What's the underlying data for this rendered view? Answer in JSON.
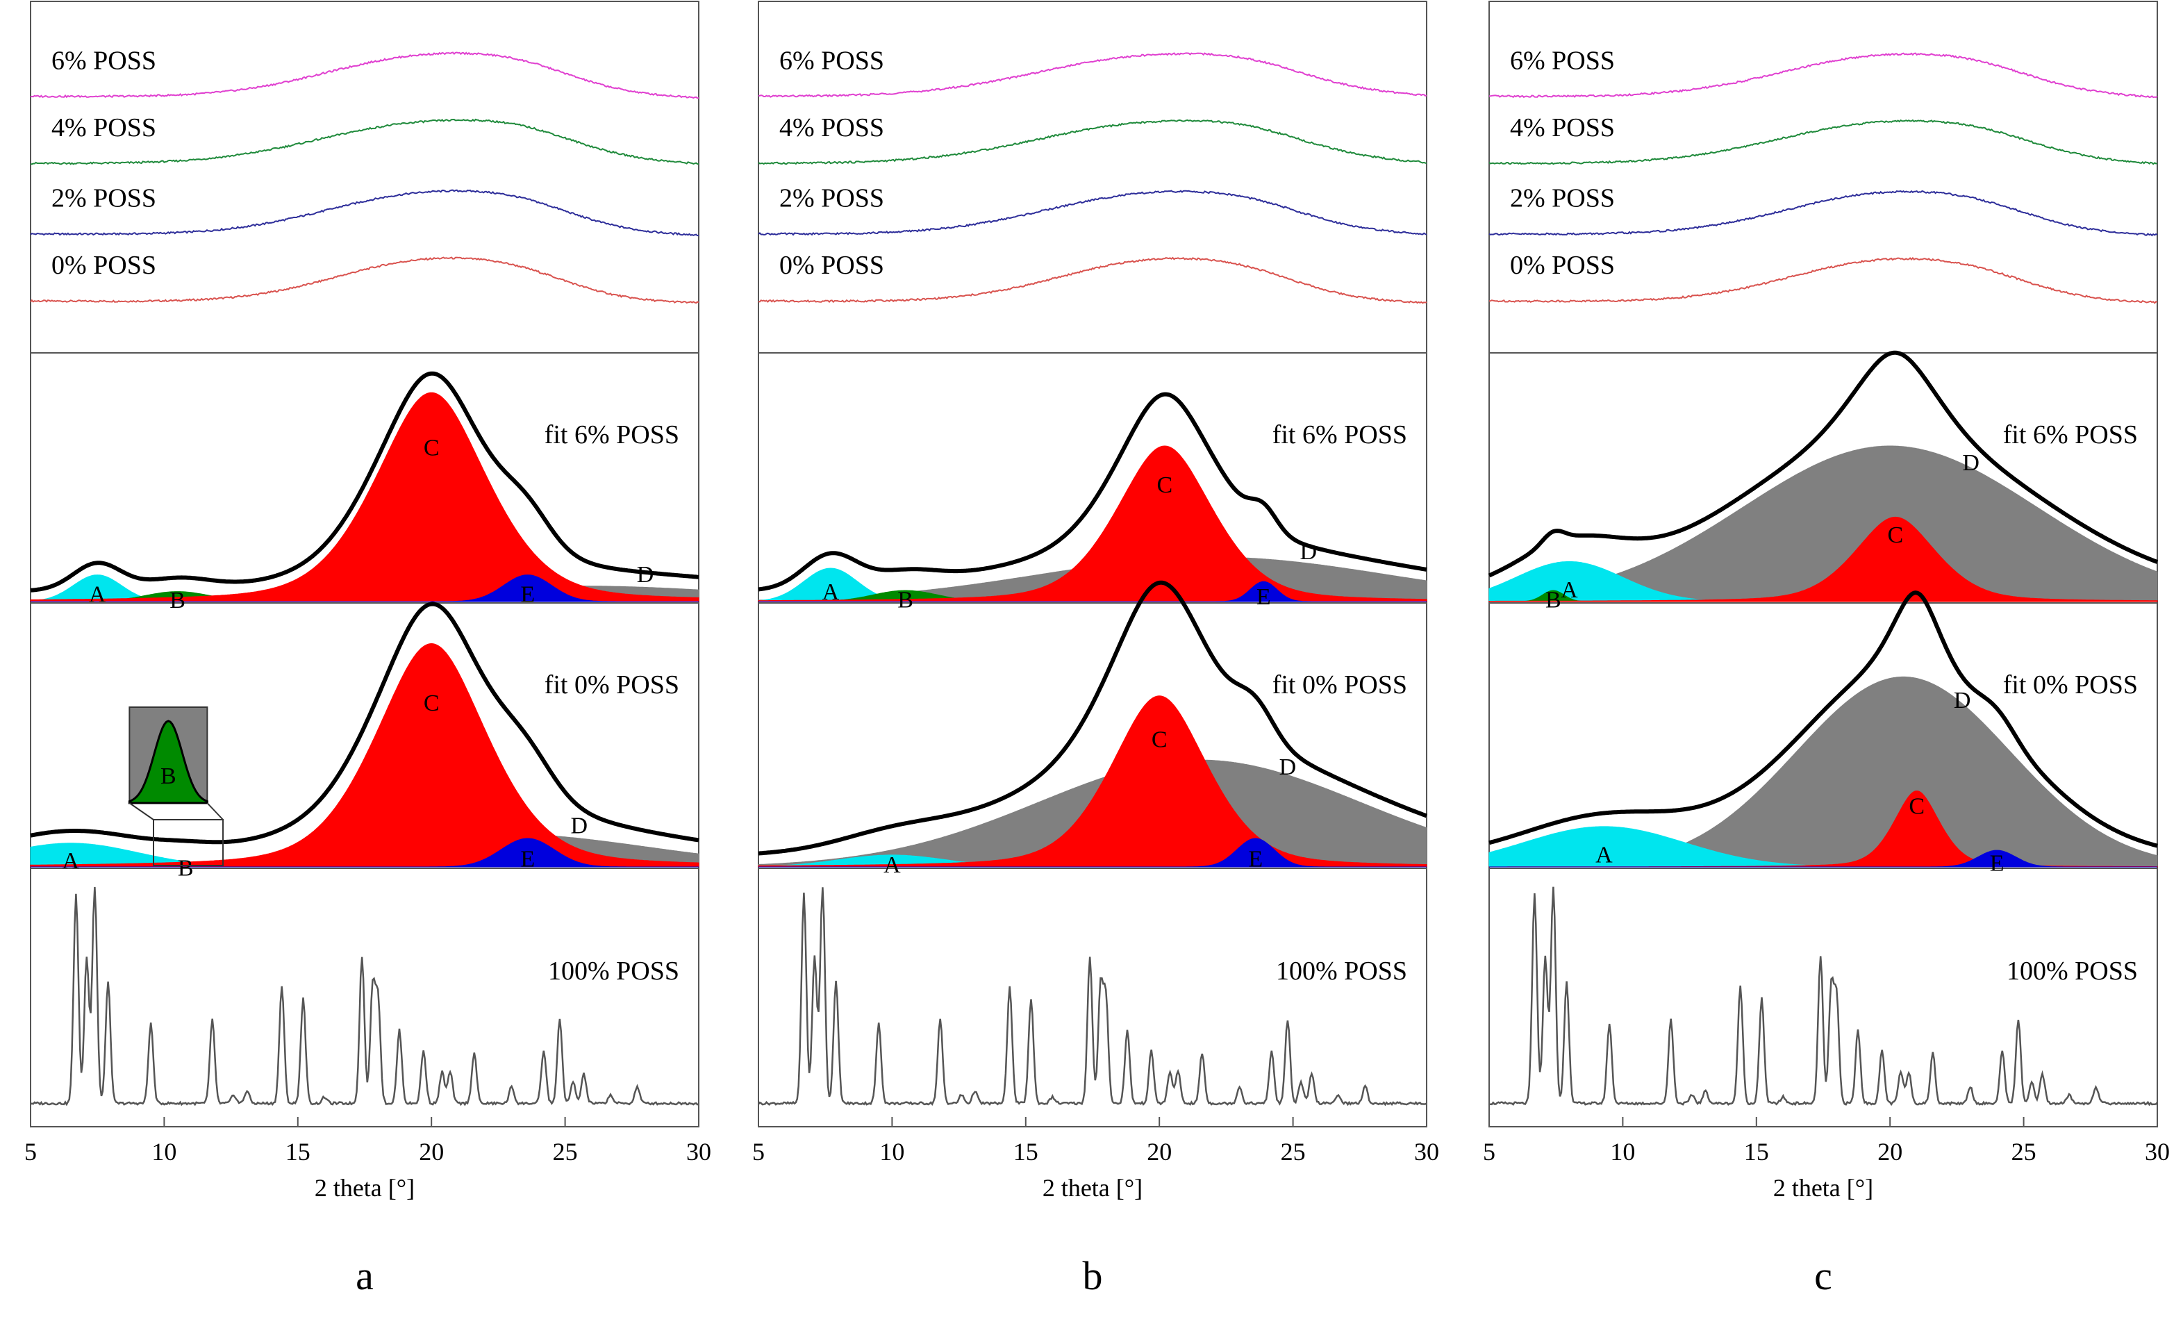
{
  "figure": {
    "x_axis_label": "2 theta [°]",
    "x_ticks": [
      5,
      10,
      15,
      20,
      25,
      30
    ],
    "colors": {
      "pct0": "#d9534f",
      "pct2": "#2e2e9a",
      "pct4": "#1f8a3b",
      "pct6": "#e040d0",
      "A": "#00e5ee",
      "B": "#008a00",
      "C": "#ff0000",
      "D": "#808080",
      "E": "#0000dd",
      "envelope": "#000000",
      "poss100": "#555555"
    }
  },
  "chart_data": [
    {
      "type": "line",
      "panel": "a",
      "panel_label": "a",
      "xlabel": "2 theta [°]",
      "xlim": [
        5,
        30
      ],
      "xrd_series": [
        {
          "name": "0% POSS",
          "peaks": [
            {
              "center": 20.0,
              "width": 2.2,
              "height": 1.0
            },
            {
              "center": 23.5,
              "width": 1.2,
              "height": 0.25
            }
          ],
          "baseline": 0.05
        },
        {
          "name": "2% POSS",
          "peaks": [
            {
              "center": 20.0,
              "width": 2.4,
              "height": 1.0
            },
            {
              "center": 23.5,
              "width": 1.2,
              "height": 0.25
            }
          ],
          "baseline": 0.05
        },
        {
          "name": "4% POSS",
          "peaks": [
            {
              "center": 20.0,
              "width": 2.6,
              "height": 1.0
            },
            {
              "center": 23.5,
              "width": 1.2,
              "height": 0.25
            }
          ],
          "baseline": 0.05
        },
        {
          "name": "6% POSS",
          "peaks": [
            {
              "center": 20.0,
              "width": 2.4,
              "height": 1.0
            },
            {
              "center": 23.5,
              "width": 1.2,
              "height": 0.25
            }
          ],
          "baseline": 0.05
        }
      ],
      "fits": [
        {
          "name": "fit 6% POSS",
          "components": [
            {
              "label": "A",
              "center": 7.5,
              "width": 0.9,
              "height": 0.12
            },
            {
              "label": "B",
              "center": 10.5,
              "width": 1.2,
              "height": 0.045
            },
            {
              "label": "C",
              "center": 20.0,
              "width": 2.2,
              "height": 0.94
            },
            {
              "label": "D",
              "center": 25.5,
              "width": 6.0,
              "height": 0.07
            },
            {
              "label": "E",
              "center": 23.6,
              "width": 0.9,
              "height": 0.12
            }
          ]
        },
        {
          "name": "fit 0% POSS",
          "components": [
            {
              "label": "A",
              "center": 6.5,
              "width": 2.5,
              "height": 0.1
            },
            {
              "label": "B",
              "center": 10.8,
              "width": 1.0,
              "height": 0.012
            },
            {
              "label": "C",
              "center": 20.0,
              "width": 2.2,
              "height": 0.94
            },
            {
              "label": "D",
              "center": 22.5,
              "width": 5.5,
              "height": 0.14
            },
            {
              "label": "E",
              "center": 23.6,
              "width": 1.0,
              "height": 0.12
            }
          ]
        }
      ],
      "poss100": {
        "name": "100% POSS",
        "peaks": [
          {
            "center": 6.7,
            "height": 1.0
          },
          {
            "center": 7.1,
            "height": 0.7
          },
          {
            "center": 7.4,
            "height": 1.03
          },
          {
            "center": 7.9,
            "height": 0.58
          },
          {
            "center": 9.5,
            "height": 0.38
          },
          {
            "center": 11.8,
            "height": 0.4
          },
          {
            "center": 12.6,
            "height": 0.04
          },
          {
            "center": 13.1,
            "height": 0.06
          },
          {
            "center": 14.4,
            "height": 0.56
          },
          {
            "center": 15.2,
            "height": 0.5
          },
          {
            "center": 16.0,
            "height": 0.03
          },
          {
            "center": 17.4,
            "height": 0.7
          },
          {
            "center": 17.8,
            "height": 0.55
          },
          {
            "center": 18.0,
            "height": 0.5
          },
          {
            "center": 18.8,
            "height": 0.35
          },
          {
            "center": 19.7,
            "height": 0.25
          },
          {
            "center": 20.4,
            "height": 0.15
          },
          {
            "center": 20.7,
            "height": 0.15
          },
          {
            "center": 21.6,
            "height": 0.24
          },
          {
            "center": 23.0,
            "height": 0.08
          },
          {
            "center": 24.2,
            "height": 0.25
          },
          {
            "center": 24.8,
            "height": 0.4
          },
          {
            "center": 25.3,
            "height": 0.1
          },
          {
            "center": 25.7,
            "height": 0.14
          },
          {
            "center": 26.7,
            "height": 0.04
          },
          {
            "center": 27.7,
            "height": 0.08
          }
        ]
      }
    },
    {
      "type": "line",
      "panel": "b",
      "panel_label": "b",
      "xlabel": "2 theta [°]",
      "xlim": [
        5,
        30
      ],
      "xrd_series": [
        {
          "name": "0% POSS",
          "peaks": [
            {
              "center": 20.0,
              "width": 2.3,
              "height": 1.0
            },
            {
              "center": 23.5,
              "width": 1.2,
              "height": 0.22
            }
          ],
          "baseline": 0.05
        },
        {
          "name": "2% POSS",
          "peaks": [
            {
              "center": 20.0,
              "width": 2.6,
              "height": 1.0
            },
            {
              "center": 23.5,
              "width": 1.2,
              "height": 0.2
            }
          ],
          "baseline": 0.05
        },
        {
          "name": "4% POSS",
          "peaks": [
            {
              "center": 20.0,
              "width": 2.8,
              "height": 1.0
            },
            {
              "center": 23.5,
              "width": 1.2,
              "height": 0.2
            }
          ],
          "baseline": 0.05
        },
        {
          "name": "6% POSS",
          "peaks": [
            {
              "center": 20.0,
              "width": 2.8,
              "height": 1.0
            },
            {
              "center": 23.5,
              "width": 1.2,
              "height": 0.2
            }
          ],
          "baseline": 0.05
        }
      ],
      "fits": [
        {
          "name": "fit 6% POSS",
          "components": [
            {
              "label": "A",
              "center": 7.7,
              "width": 1.0,
              "height": 0.15
            },
            {
              "label": "B",
              "center": 10.5,
              "width": 1.2,
              "height": 0.05
            },
            {
              "label": "C",
              "center": 20.2,
              "width": 1.9,
              "height": 0.7
            },
            {
              "label": "D",
              "center": 22.0,
              "width": 6.5,
              "height": 0.2
            },
            {
              "label": "E",
              "center": 23.9,
              "width": 0.5,
              "height": 0.09
            }
          ]
        },
        {
          "name": "fit 0% POSS",
          "components": [
            {
              "label": "A",
              "center": 10.0,
              "width": 2.0,
              "height": 0.05
            },
            {
              "label": "C",
              "center": 20.0,
              "width": 1.9,
              "height": 0.72
            },
            {
              "label": "D",
              "center": 21.5,
              "width": 6.0,
              "height": 0.45
            },
            {
              "label": "E",
              "center": 23.6,
              "width": 0.7,
              "height": 0.12
            }
          ]
        }
      ],
      "poss100": {
        "name": "100% POSS",
        "peaks": [
          {
            "center": 6.7,
            "height": 1.0
          },
          {
            "center": 7.1,
            "height": 0.7
          },
          {
            "center": 7.4,
            "height": 1.03
          },
          {
            "center": 7.9,
            "height": 0.58
          },
          {
            "center": 9.5,
            "height": 0.38
          },
          {
            "center": 11.8,
            "height": 0.4
          },
          {
            "center": 12.6,
            "height": 0.04
          },
          {
            "center": 13.1,
            "height": 0.06
          },
          {
            "center": 14.4,
            "height": 0.56
          },
          {
            "center": 15.2,
            "height": 0.5
          },
          {
            "center": 16.0,
            "height": 0.03
          },
          {
            "center": 17.4,
            "height": 0.7
          },
          {
            "center": 17.8,
            "height": 0.55
          },
          {
            "center": 18.0,
            "height": 0.5
          },
          {
            "center": 18.8,
            "height": 0.35
          },
          {
            "center": 19.7,
            "height": 0.25
          },
          {
            "center": 20.4,
            "height": 0.15
          },
          {
            "center": 20.7,
            "height": 0.15
          },
          {
            "center": 21.6,
            "height": 0.24
          },
          {
            "center": 23.0,
            "height": 0.08
          },
          {
            "center": 24.2,
            "height": 0.25
          },
          {
            "center": 24.8,
            "height": 0.4
          },
          {
            "center": 25.3,
            "height": 0.1
          },
          {
            "center": 25.7,
            "height": 0.14
          },
          {
            "center": 26.7,
            "height": 0.04
          },
          {
            "center": 27.7,
            "height": 0.08
          }
        ]
      }
    },
    {
      "type": "line",
      "panel": "c",
      "panel_label": "c",
      "xlabel": "2 theta [°]",
      "xlim": [
        5,
        30
      ],
      "xrd_series": [
        {
          "name": "0% POSS",
          "peaks": [
            {
              "center": 20.0,
              "width": 2.3,
              "height": 1.0
            },
            {
              "center": 23.5,
              "width": 1.2,
              "height": 0.2
            }
          ],
          "baseline": 0.05
        },
        {
          "name": "2% POSS",
          "peaks": [
            {
              "center": 20.0,
              "width": 2.4,
              "height": 1.0
            },
            {
              "center": 23.5,
              "width": 1.2,
              "height": 0.2
            }
          ],
          "baseline": 0.05
        },
        {
          "name": "4% POSS",
          "peaks": [
            {
              "center": 20.0,
              "width": 2.6,
              "height": 1.0
            },
            {
              "center": 23.5,
              "width": 1.2,
              "height": 0.2
            }
          ],
          "baseline": 0.05
        },
        {
          "name": "6% POSS",
          "peaks": [
            {
              "center": 20.0,
              "width": 2.5,
              "height": 1.0
            },
            {
              "center": 23.5,
              "width": 1.2,
              "height": 0.2
            }
          ],
          "baseline": 0.05
        }
      ],
      "fits": [
        {
          "name": "fit 6% POSS",
          "components": [
            {
              "label": "A",
              "center": 8.0,
              "width": 2.0,
              "height": 0.18
            },
            {
              "label": "B",
              "center": 7.4,
              "width": 0.4,
              "height": 0.05
            },
            {
              "label": "C",
              "center": 20.2,
              "width": 1.6,
              "height": 0.38
            },
            {
              "label": "D",
              "center": 20.0,
              "width": 5.5,
              "height": 0.7
            }
          ]
        },
        {
          "name": "fit 0% POSS",
          "components": [
            {
              "label": "A",
              "center": 9.3,
              "width": 3.0,
              "height": 0.17
            },
            {
              "label": "C",
              "center": 21.0,
              "width": 0.9,
              "height": 0.32
            },
            {
              "label": "D",
              "center": 20.5,
              "width": 4.0,
              "height": 0.8
            },
            {
              "label": "E",
              "center": 24.0,
              "width": 0.7,
              "height": 0.07
            }
          ]
        }
      ],
      "poss100": {
        "name": "100% POSS",
        "peaks": [
          {
            "center": 6.7,
            "height": 1.0
          },
          {
            "center": 7.1,
            "height": 0.7
          },
          {
            "center": 7.4,
            "height": 1.03
          },
          {
            "center": 7.9,
            "height": 0.58
          },
          {
            "center": 9.5,
            "height": 0.38
          },
          {
            "center": 11.8,
            "height": 0.4
          },
          {
            "center": 12.6,
            "height": 0.04
          },
          {
            "center": 13.1,
            "height": 0.06
          },
          {
            "center": 14.4,
            "height": 0.56
          },
          {
            "center": 15.2,
            "height": 0.5
          },
          {
            "center": 16.0,
            "height": 0.03
          },
          {
            "center": 17.4,
            "height": 0.7
          },
          {
            "center": 17.8,
            "height": 0.55
          },
          {
            "center": 18.0,
            "height": 0.5
          },
          {
            "center": 18.8,
            "height": 0.35
          },
          {
            "center": 19.7,
            "height": 0.25
          },
          {
            "center": 20.4,
            "height": 0.15
          },
          {
            "center": 20.7,
            "height": 0.15
          },
          {
            "center": 21.6,
            "height": 0.24
          },
          {
            "center": 23.0,
            "height": 0.08
          },
          {
            "center": 24.2,
            "height": 0.25
          },
          {
            "center": 24.8,
            "height": 0.4
          },
          {
            "center": 25.3,
            "height": 0.1
          },
          {
            "center": 25.7,
            "height": 0.14
          },
          {
            "center": 26.7,
            "height": 0.04
          },
          {
            "center": 27.7,
            "height": 0.08
          }
        ]
      }
    }
  ]
}
